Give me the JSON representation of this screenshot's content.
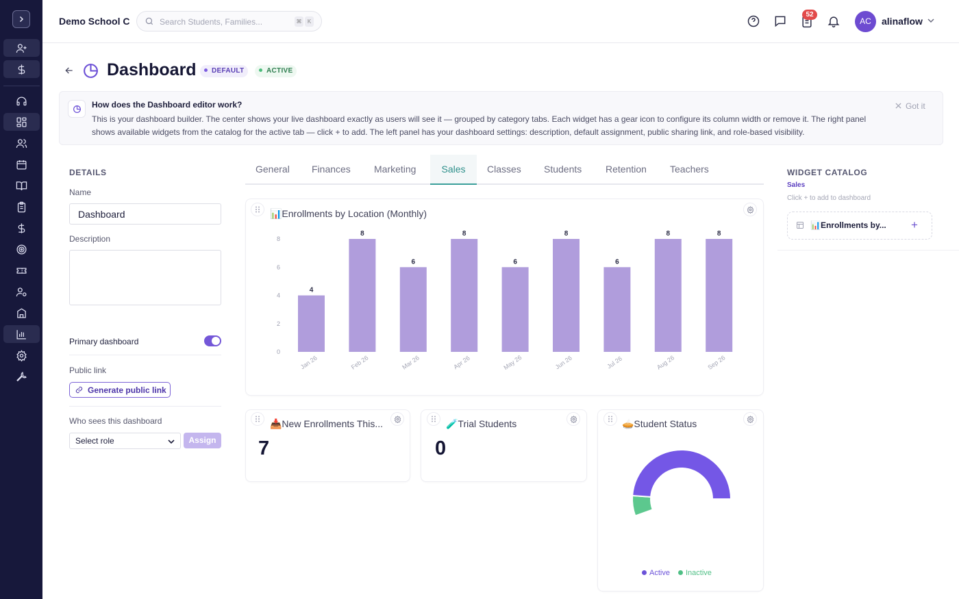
{
  "app": {
    "school_name": "Demo School C"
  },
  "search": {
    "placeholder": "Search Students, Families...",
    "shortcut_keys": [
      "⌘",
      "K"
    ]
  },
  "header": {
    "notification_count": "52",
    "user_initials": "AC",
    "username": "alinaflow"
  },
  "page": {
    "title": "Dashboard",
    "badges": [
      "DEFAULT",
      "ACTIVE"
    ]
  },
  "banner": {
    "title": "How does the Dashboard editor work?",
    "text": "This is your dashboard builder. The center shows your live dashboard exactly as users will see it — grouped by category tabs. Each widget has a gear icon to configure its column width or remove it. The right panel shows available widgets from the catalog for the active tab — click + to add. The left panel has your dashboard settings: description, default assignment, public sharing link, and role-based visibility.",
    "dismiss_label": "Got it"
  },
  "details": {
    "section_title": "DETAILS",
    "name_label": "Name",
    "name_value": "Dashboard",
    "description_label": "Description",
    "description_value": "",
    "primary_label": "Primary dashboard",
    "primary_enabled": true,
    "public_link_label": "Public link",
    "generate_link_label": "Generate public link",
    "visibility_label": "Who sees this dashboard",
    "role_select_value": "Select role",
    "assign_label": "Assign"
  },
  "tabs": [
    "General",
    "Finances",
    "Marketing",
    "Sales",
    "Classes",
    "Students",
    "Retention",
    "Teachers"
  ],
  "active_tab": "Sales",
  "widgets": {
    "enrollments_chart": {
      "title": "📊Enrollments by Location (Monthly)"
    },
    "new_enrollments": {
      "title": "📥New Enrollments This...",
      "value": "7"
    },
    "trial_students": {
      "title": "🧪Trial Students",
      "value": "0"
    },
    "student_status": {
      "title": "🥧Student Status",
      "legend": [
        "Active",
        "Inactive"
      ]
    }
  },
  "chart_data": [
    {
      "type": "bar",
      "title": "📊Enrollments by Location (Monthly)",
      "categories": [
        "Jan 26",
        "Feb 26",
        "Mar 26",
        "Apr 26",
        "May 26",
        "Jun 26",
        "Jul 26",
        "Aug 26",
        "Sep 26"
      ],
      "values": [
        4,
        8,
        6,
        8,
        6,
        8,
        6,
        8,
        8
      ],
      "yticks": [
        0,
        2,
        4,
        6,
        8
      ],
      "ylim": [
        0,
        8
      ],
      "color": "#b09ddc",
      "grid": false
    },
    {
      "type": "pie",
      "title": "🥧Student Status",
      "labels": [
        "Active",
        "Inactive"
      ],
      "values": [
        88,
        12
      ],
      "colors": [
        "#7457e6",
        "#5cc88e"
      ],
      "style": "semi-donut"
    }
  ],
  "catalog": {
    "title": "WIDGET CATALOG",
    "tab": "Sales",
    "hint": "Click + to add to dashboard",
    "items": [
      {
        "label": "📊Enrollments by..."
      }
    ]
  },
  "colors": {
    "sidebar": "#17183b",
    "accent": "#7457d8",
    "tab_active": "#2d8f8a"
  }
}
